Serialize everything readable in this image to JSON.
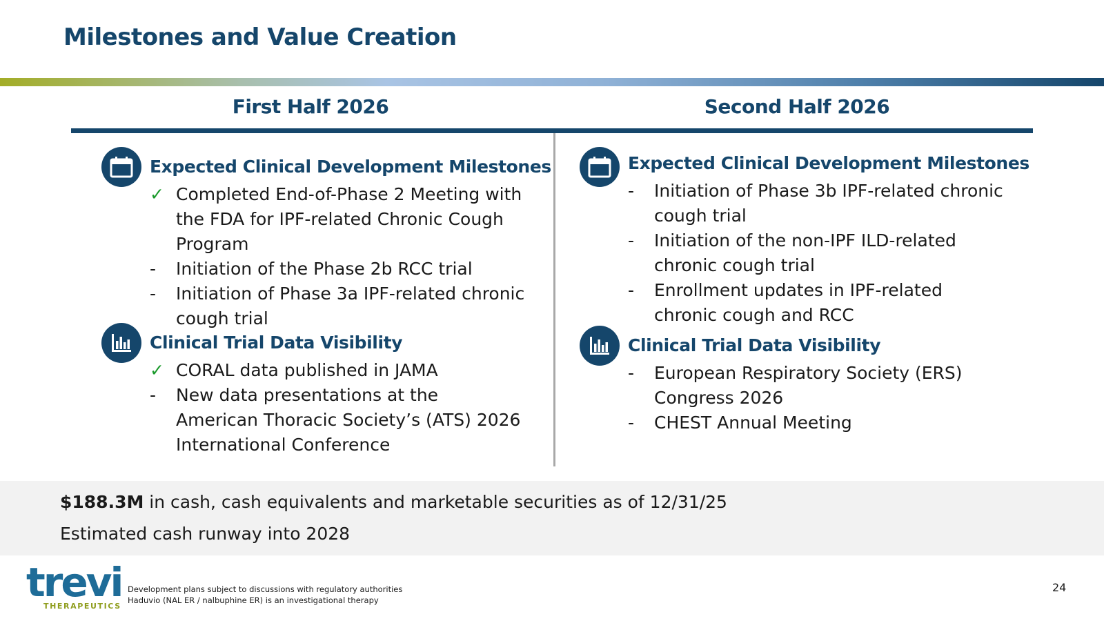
{
  "title": "Milestones and Value Creation",
  "colors": {
    "navy": "#15466b",
    "check": "#1b9a2c",
    "band": "#f2f2f2",
    "olive": "#a3ad27"
  },
  "columns": [
    {
      "heading": "First Half 2026",
      "sections": [
        {
          "icon": "calendar-icon",
          "title": "Expected Clinical Development Milestones",
          "items": [
            {
              "marker": "check",
              "lines": [
                "Completed End-of-Phase 2 Meeting with",
                "the FDA for IPF-related Chronic Cough",
                "Program"
              ]
            },
            {
              "marker": "dash",
              "lines": [
                "Initiation of the Phase 2b RCC trial"
              ]
            },
            {
              "marker": "dash",
              "lines": [
                "Initiation of Phase 3a IPF-related chronic",
                "cough trial"
              ]
            }
          ]
        },
        {
          "icon": "bar-chart-icon",
          "title": "Clinical Trial Data Visibility",
          "items": [
            {
              "marker": "check",
              "lines": [
                "CORAL data published in JAMA"
              ]
            },
            {
              "marker": "dash",
              "lines": [
                "New data presentations at the",
                "American Thoracic Society’s (ATS) 2026",
                "International Conference"
              ]
            }
          ]
        }
      ]
    },
    {
      "heading": "Second Half 2026",
      "sections": [
        {
          "icon": "calendar-icon",
          "title": "Expected Clinical Development Milestones",
          "items": [
            {
              "marker": "dash",
              "lines": [
                "Initiation of Phase 3b IPF-related chronic",
                "cough trial"
              ]
            },
            {
              "marker": "dash",
              "lines": [
                "Initiation of the non-IPF ILD-related",
                "chronic cough trial"
              ]
            },
            {
              "marker": "dash",
              "lines": [
                "Enrollment updates in IPF-related",
                "chronic cough and RCC"
              ]
            }
          ]
        },
        {
          "icon": "bar-chart-icon",
          "title": "Clinical Trial Data Visibility",
          "items": [
            {
              "marker": "dash",
              "lines": [
                "European Respiratory Society (ERS)",
                "Congress 2026"
              ]
            },
            {
              "marker": "dash",
              "lines": [
                "CHEST Annual Meeting"
              ]
            }
          ]
        }
      ]
    }
  ],
  "cash": {
    "amount": "$188.3M",
    "line1_rest": " in cash, cash equivalents and marketable securities as of 12/31/25",
    "line2": "Estimated cash runway into 2028"
  },
  "markers": {
    "check": "✓",
    "dash": "-"
  },
  "logo": {
    "word": "trevi",
    "sub": "THERAPEUTICS"
  },
  "footnotes": [
    "Development plans subject to discussions with regulatory authorities",
    "Haduvio (NAL ER / nalbuphine ER) is an investigational therapy"
  ],
  "page_number": "24"
}
